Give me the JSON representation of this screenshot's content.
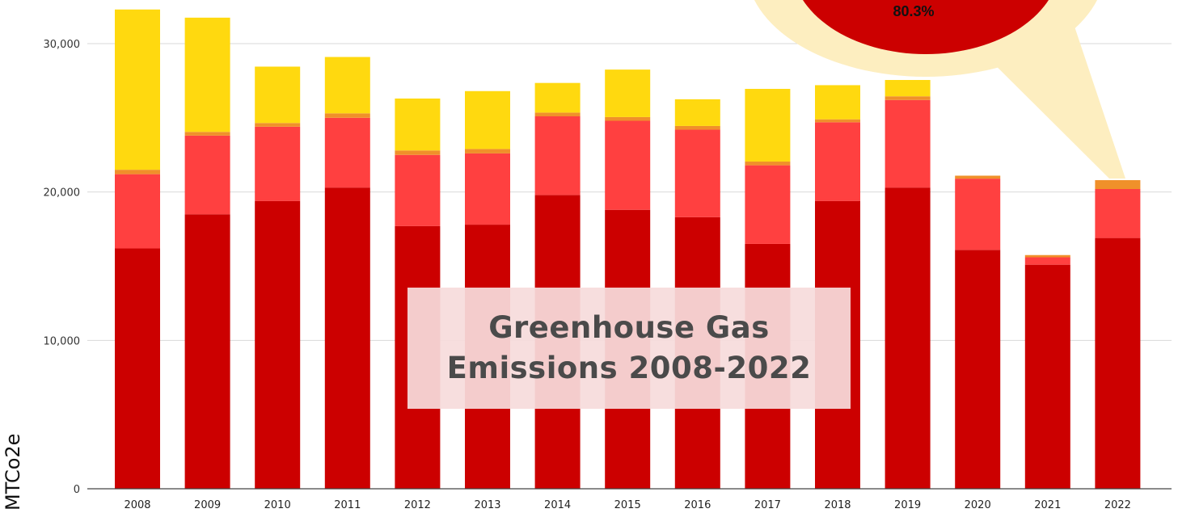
{
  "chart_data": {
    "type": "bar",
    "stacked": true,
    "title": [
      "Greenhouse Gas",
      "Emissions 2008-2022"
    ],
    "ylabel": "MTCo2e",
    "ylim": [
      0,
      32000
    ],
    "yticks": [
      0,
      10000,
      20000,
      30000
    ],
    "ytick_labels": [
      "0",
      "10,000",
      "20,000",
      "30,000"
    ],
    "grid": true,
    "categories": [
      "2008",
      "2009",
      "2010",
      "2011",
      "2012",
      "2013",
      "2014",
      "2015",
      "2016",
      "2017",
      "2018",
      "2019",
      "2020",
      "2021",
      "2022"
    ],
    "series": [
      {
        "color": "#cc0000",
        "values": [
          16200,
          18500,
          19400,
          20300,
          17700,
          17800,
          19800,
          18800,
          18300,
          16500,
          19400,
          20300,
          16100,
          15100,
          16900
        ]
      },
      {
        "color": "#ff4040",
        "values": [
          5000,
          5300,
          5000,
          4700,
          4800,
          4800,
          5300,
          6000,
          5900,
          5300,
          5300,
          5900,
          4800,
          500,
          3300
        ]
      },
      {
        "color": "#f0902a",
        "values": [
          300,
          250,
          250,
          300,
          300,
          300,
          250,
          250,
          250,
          250,
          200,
          250,
          200,
          150,
          600
        ]
      },
      {
        "color": "#ffd90f",
        "values": [
          10800,
          7700,
          3800,
          3800,
          3500,
          3900,
          2000,
          3200,
          1800,
          4900,
          2300,
          1100,
          0,
          0,
          0
        ]
      }
    ],
    "annotation": {
      "text": "80.3%",
      "points_to": "2022"
    }
  },
  "colors": {
    "callout_fill": "#cc0000",
    "callout_halo": "#fdeec0",
    "title_box": "#f6dcdc",
    "grid": "#d9d9d9"
  }
}
